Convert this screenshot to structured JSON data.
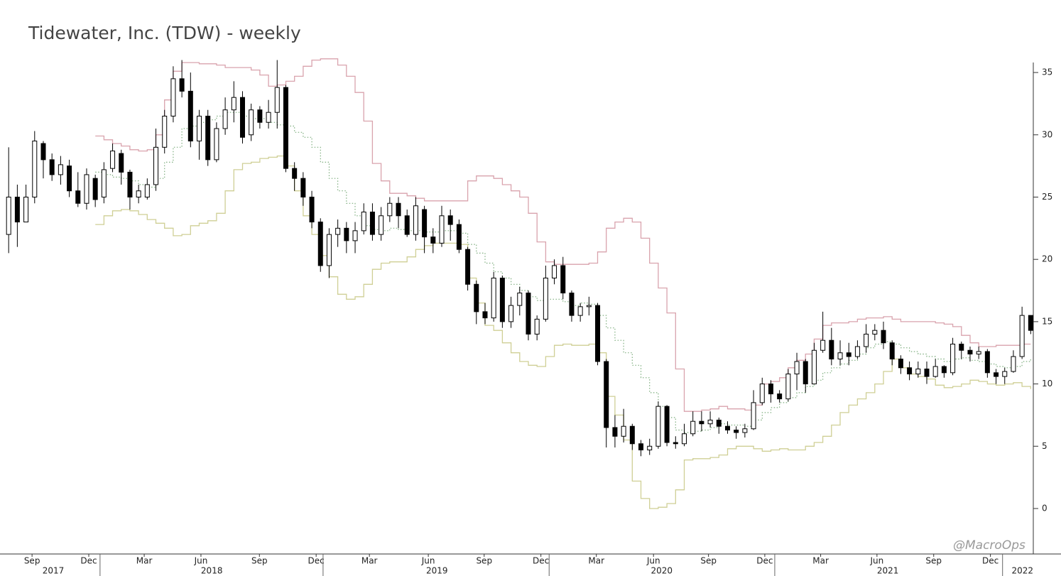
{
  "chart_data": {
    "type": "candlestick",
    "title": "Tidewater, Inc. (TDW) - weekly",
    "watermark": "@MacroOps",
    "x": [
      0,
      2,
      4,
      6,
      8,
      10,
      12,
      14,
      16,
      18,
      20,
      22,
      24,
      26,
      28,
      30,
      32,
      34,
      36,
      38,
      40,
      42,
      44,
      46,
      48,
      50,
      52,
      54,
      56,
      58,
      60,
      62,
      64,
      66,
      68,
      70,
      72,
      74,
      76,
      78,
      80,
      82,
      84,
      86,
      88,
      90,
      92,
      94,
      96,
      98,
      100,
      102,
      104,
      106,
      108,
      110,
      112,
      114,
      116,
      118,
      120,
      122,
      124,
      126,
      128,
      130,
      132,
      134,
      136,
      138,
      140,
      142,
      144,
      146,
      148,
      150,
      152,
      154,
      156,
      158,
      160,
      162,
      164,
      166,
      168,
      170,
      172,
      174,
      176,
      178,
      180,
      182,
      184,
      186,
      188,
      190,
      192,
      194,
      196,
      198,
      200,
      202,
      204,
      206,
      208,
      210,
      212,
      214,
      216,
      218,
      220,
      222,
      224,
      226,
      228,
      230,
      232,
      234,
      236
    ],
    "open": [
      22,
      25,
      23,
      25,
      29.3,
      28,
      26.8,
      27.5,
      25.5,
      24.5,
      26.5,
      25,
      27.3,
      28.5,
      27,
      25,
      25,
      26,
      29,
      31.5,
      34.5,
      33.5,
      29.5,
      31.5,
      28,
      30.5,
      32,
      33,
      30,
      32,
      31,
      31.8,
      33.8,
      27.3,
      26.5,
      25,
      23,
      19.5,
      22,
      22.5,
      21.5,
      22.3,
      23.8,
      22,
      23.5,
      24.5,
      23.5,
      22,
      24,
      21.8,
      21.3,
      23.5,
      22.8,
      20.8,
      18,
      15.8,
      15.3,
      18.5,
      15,
      16.3,
      17.3,
      14,
      15.2,
      18.5,
      19.5,
      17.3,
      15.5,
      16.2,
      16.3,
      11.8,
      6.5,
      5.8,
      6.6,
      5.2,
      4.7,
      5,
      8.2,
      5.3,
      5.2,
      6,
      7,
      6.8,
      7.1,
      6.6,
      6.3,
      6.1,
      6.4,
      8.5,
      10,
      9.2,
      8.8,
      10.8,
      11.8,
      10,
      12.7,
      13.5,
      12,
      12.5,
      12.2,
      13,
      14,
      14.3,
      13.3,
      12,
      11.3,
      10.8,
      11.2,
      10.6,
      11.4,
      10.9,
      13.2,
      12.7,
      12.4,
      12.6,
      10.9,
      10.6,
      11,
      12.2,
      15.5
    ],
    "high": [
      29,
      26,
      26,
      30.3,
      29.5,
      28.5,
      28.3,
      28,
      27,
      27.3,
      26.8,
      27.8,
      29.3,
      28.8,
      27.2,
      26,
      26.5,
      30.5,
      32,
      35.5,
      36,
      35,
      32,
      32,
      31,
      33,
      34.3,
      33.5,
      32.5,
      32.3,
      32.8,
      36,
      34,
      27.8,
      27,
      25.5,
      23.3,
      22.5,
      23.2,
      23,
      23,
      24.5,
      24.5,
      24.2,
      25,
      25,
      24,
      25,
      24.3,
      22.5,
      24.3,
      24,
      23.2,
      21,
      18.3,
      16.5,
      19,
      18.7,
      17,
      17.8,
      17.5,
      15.5,
      19.5,
      20,
      20.2,
      17.5,
      16.5,
      17,
      16.5,
      12,
      7.5,
      8,
      6.8,
      5.5,
      5.6,
      8.6,
      8.3,
      5.8,
      6.8,
      7.8,
      7.8,
      7.8,
      7.3,
      7,
      6.6,
      6.8,
      9.5,
      10.5,
      10.3,
      9.5,
      11.2,
      12.5,
      12,
      13.3,
      15.8,
      14.5,
      13.5,
      13.3,
      13.5,
      14.8,
      14.8,
      15,
      13.5,
      12.3,
      11.8,
      11.8,
      11.8,
      12,
      11.5,
      13.7,
      13.4,
      13,
      13,
      12.8,
      11.2,
      11.3,
      12.7,
      16.2,
      15.5
    ],
    "low": [
      20.5,
      21,
      23,
      24.5,
      26.5,
      26.3,
      26,
      25,
      24.2,
      24,
      24.2,
      24.5,
      27,
      26,
      24,
      24.5,
      24.8,
      25.5,
      28.5,
      31,
      33,
      29,
      28,
      27.5,
      27.8,
      30,
      31,
      29.3,
      29.5,
      30.5,
      30.5,
      30.5,
      27,
      25.5,
      24.3,
      22.5,
      19,
      18.5,
      21,
      20.5,
      20.5,
      22,
      21.5,
      21.5,
      23,
      22.5,
      21.8,
      21.5,
      20.5,
      20.5,
      21,
      21.5,
      20.5,
      17.5,
      14.8,
      14.8,
      15,
      14.5,
      14.5,
      15.5,
      13.5,
      13.5,
      15,
      18,
      16.8,
      15,
      15,
      15.5,
      11.5,
      4.9,
      4.9,
      5.3,
      4.7,
      4.2,
      4.3,
      4.8,
      5,
      4.8,
      5,
      5.8,
      6.2,
      6.5,
      6,
      6,
      5.6,
      5.7,
      6.3,
      8.3,
      8.5,
      8.5,
      8.6,
      9.5,
      9.3,
      10,
      12.5,
      11.5,
      11.5,
      11.5,
      12,
      12.5,
      13.5,
      12.8,
      11.5,
      10.8,
      10.3,
      10.5,
      10,
      10.5,
      10.5,
      10.7,
      12,
      11.8,
      12,
      10.5,
      10,
      10,
      10.9,
      12,
      14
    ],
    "close": [
      25,
      23,
      25,
      29.5,
      28,
      26.8,
      27.6,
      25.5,
      24.5,
      26.8,
      24.8,
      27.2,
      28.7,
      27,
      25,
      25.5,
      26,
      29,
      31.5,
      34.5,
      33.5,
      29.5,
      31.5,
      28,
      30.5,
      32,
      33,
      29.8,
      32,
      31,
      31.8,
      33.8,
      27.3,
      26.5,
      25,
      23,
      19.5,
      22,
      22.5,
      21.5,
      22.3,
      23.8,
      22,
      23.5,
      24.5,
      23.5,
      22,
      24.3,
      21.8,
      21.3,
      23.5,
      22.8,
      20.8,
      18,
      15.8,
      15.3,
      18.5,
      15,
      16.3,
      17.3,
      14,
      15.2,
      18.5,
      19.5,
      17.3,
      15.5,
      16.2,
      16.3,
      11.8,
      6.5,
      5.8,
      6.6,
      5.2,
      4.7,
      5,
      8.2,
      5.3,
      5.2,
      6,
      7,
      6.8,
      7.1,
      6.6,
      6.3,
      6.1,
      6.4,
      8.5,
      10,
      9.2,
      8.8,
      10.8,
      11.8,
      10,
      12.7,
      13.5,
      12,
      12.5,
      12.2,
      13,
      14,
      14.3,
      13.3,
      12,
      11.3,
      10.8,
      11.2,
      10.6,
      11.4,
      10.9,
      13.2,
      12.7,
      12.4,
      12.6,
      10.9,
      10.6,
      11,
      12.2,
      15.5,
      14.3
    ],
    "up_color": "#ffffff",
    "down_color": "#000000",
    "bands": [
      {
        "color": "#d9a3ad",
        "style": "solid",
        "values": [
          null,
          null,
          null,
          null,
          null,
          null,
          null,
          null,
          null,
          null,
          29.9,
          29.6,
          29.3,
          29.1,
          28.8,
          28.7,
          28.8,
          30,
          32.8,
          35.1,
          35.8,
          35.8,
          35.7,
          35.7,
          35.6,
          35.4,
          35.4,
          35.4,
          35.2,
          34.8,
          33.9,
          34,
          34.3,
          34.7,
          35.5,
          36,
          36.1,
          36.1,
          35.6,
          34.7,
          33.4,
          31.1,
          27.7,
          26.3,
          25.3,
          25.3,
          25.1,
          24.9,
          24.7,
          24.7,
          24.7,
          24.7,
          24.7,
          26.3,
          26.7,
          26.7,
          26.5,
          26,
          25.5,
          25,
          23.7,
          21.4,
          19.8,
          19.6,
          19.6,
          19.6,
          19.6,
          19.7,
          20.6,
          22.5,
          23,
          23.3,
          23,
          21.7,
          19.7,
          17.7,
          15.7,
          11.2,
          7.8,
          7.8,
          7.9,
          8,
          8.2,
          8,
          8,
          7.9,
          8.3,
          10,
          10.2,
          10.5,
          11.3,
          11.9,
          12.4,
          13.6,
          14.7,
          14.9,
          14.9,
          15,
          15.2,
          15.3,
          15.3,
          15.4,
          15.2,
          15,
          15,
          15,
          15,
          14.9,
          14.8,
          14.6,
          13.9,
          13.3,
          13,
          13,
          13.1,
          13.1,
          13.1,
          13.2,
          13.2
        ]
      },
      {
        "color": "#7fae7f",
        "style": "dotted",
        "values": [
          null,
          null,
          null,
          null,
          null,
          null,
          null,
          null,
          null,
          null,
          27,
          26.8,
          26.6,
          26.5,
          26.3,
          26,
          25.8,
          26.5,
          27.8,
          29,
          30.5,
          30.7,
          31,
          31.2,
          31.5,
          31.8,
          31.8,
          31.5,
          31.3,
          31.3,
          31,
          30.8,
          30.7,
          30.2,
          29.8,
          29,
          27.8,
          26.5,
          25.5,
          24.5,
          23.5,
          22.7,
          22.4,
          22.3,
          22.5,
          22.4,
          22.3,
          22.3,
          22.2,
          22.2,
          22.3,
          22.3,
          22.1,
          21.2,
          20.5,
          19.7,
          19,
          18.5,
          18,
          17.5,
          17,
          16.7,
          16.8,
          16.8,
          16.6,
          16.3,
          16.5,
          16.4,
          15.5,
          14.5,
          13.5,
          12.5,
          11.5,
          10.5,
          9.3,
          8.2,
          7.3,
          6.3,
          6.1,
          6.2,
          6.3,
          6.5,
          6.8,
          6.7,
          6.7,
          6.6,
          7.1,
          7.7,
          8.1,
          8.5,
          8.9,
          9.3,
          9.8,
          10.3,
          10.9,
          11.3,
          11.6,
          11.9,
          12.4,
          12.9,
          13.2,
          13.4,
          13.2,
          12.9,
          12.6,
          12.4,
          12.2,
          12,
          11.8,
          12,
          12.1,
          11.9,
          11.8,
          11.6,
          11.4,
          11.3,
          11.4,
          11.8,
          12.1
        ]
      },
      {
        "color": "#cfcf95",
        "style": "solid",
        "values": [
          null,
          null,
          null,
          null,
          null,
          null,
          null,
          null,
          null,
          null,
          22.8,
          23.5,
          23.9,
          24,
          23.9,
          23.6,
          23.2,
          22.9,
          22.5,
          21.9,
          22,
          22.7,
          22.9,
          23.1,
          23.7,
          25.5,
          27.2,
          27.7,
          27.8,
          28.1,
          28.2,
          28.3,
          27.5,
          25.5,
          23.5,
          22,
          20.3,
          18.6,
          17.2,
          16.8,
          17,
          18,
          19.2,
          19.7,
          19.8,
          19.8,
          20.2,
          20.8,
          21.1,
          21.3,
          21.3,
          21.3,
          21.2,
          18.5,
          16.5,
          14.7,
          14.3,
          13.3,
          12.5,
          11.8,
          11.5,
          11.4,
          12.2,
          13.1,
          13.2,
          13.1,
          13.1,
          13.2,
          12.5,
          9,
          7.5,
          5.5,
          2.2,
          0.8,
          0,
          0.1,
          0.4,
          1.5,
          3.9,
          4,
          4,
          4.1,
          4.3,
          4.8,
          5,
          5,
          4.8,
          4.6,
          4.7,
          4.8,
          4.7,
          4.7,
          5,
          5.3,
          5.8,
          6.7,
          7.7,
          8.3,
          8.8,
          9.3,
          10,
          11,
          12,
          11.3,
          10.8,
          10.6,
          10.4,
          9.9,
          9.7,
          9.8,
          10,
          10.3,
          10.2,
          10,
          9.9,
          10,
          10.1,
          9.8,
          9.6
        ]
      }
    ],
    "xlim": [
      -2,
      236.6
    ],
    "ylim": [
      -3.65,
      37.4
    ],
    "yticks": [
      0,
      5,
      10,
      15,
      20,
      25,
      30,
      35
    ],
    "xticks": [
      {
        "value": 5.4,
        "label": "Sep"
      },
      {
        "value": 18.5,
        "label": "Dec"
      },
      {
        "value": 31.3,
        "label": "Mar"
      },
      {
        "value": 44.4,
        "label": "Jun"
      },
      {
        "value": 57.9,
        "label": "Sep"
      },
      {
        "value": 71,
        "label": "Dec"
      },
      {
        "value": 83.3,
        "label": "Mar"
      },
      {
        "value": 96.9,
        "label": "Jun"
      },
      {
        "value": 109.8,
        "label": "Sep"
      },
      {
        "value": 122.9,
        "label": "Dec"
      },
      {
        "value": 135.7,
        "label": "Mar"
      },
      {
        "value": 148.9,
        "label": "Jun"
      },
      {
        "value": 161.6,
        "label": "Sep"
      },
      {
        "value": 174.6,
        "label": "Dec"
      },
      {
        "value": 187.5,
        "label": "Mar"
      },
      {
        "value": 200.5,
        "label": "Jun"
      },
      {
        "value": 213.6,
        "label": "Sep"
      },
      {
        "value": 226.7,
        "label": "Dec"
      }
    ],
    "year_labels": [
      {
        "value": 10.3,
        "label": "2017"
      },
      {
        "value": 46.9,
        "label": "2018"
      },
      {
        "value": 98.9,
        "label": "2019"
      },
      {
        "value": 150.8,
        "label": "2020"
      },
      {
        "value": 203,
        "label": "2021"
      },
      {
        "value": 234.1,
        "label": "2022"
      }
    ],
    "year_breaks": [
      21.1,
      72.6,
      124.8,
      176.9,
      229.5
    ]
  }
}
